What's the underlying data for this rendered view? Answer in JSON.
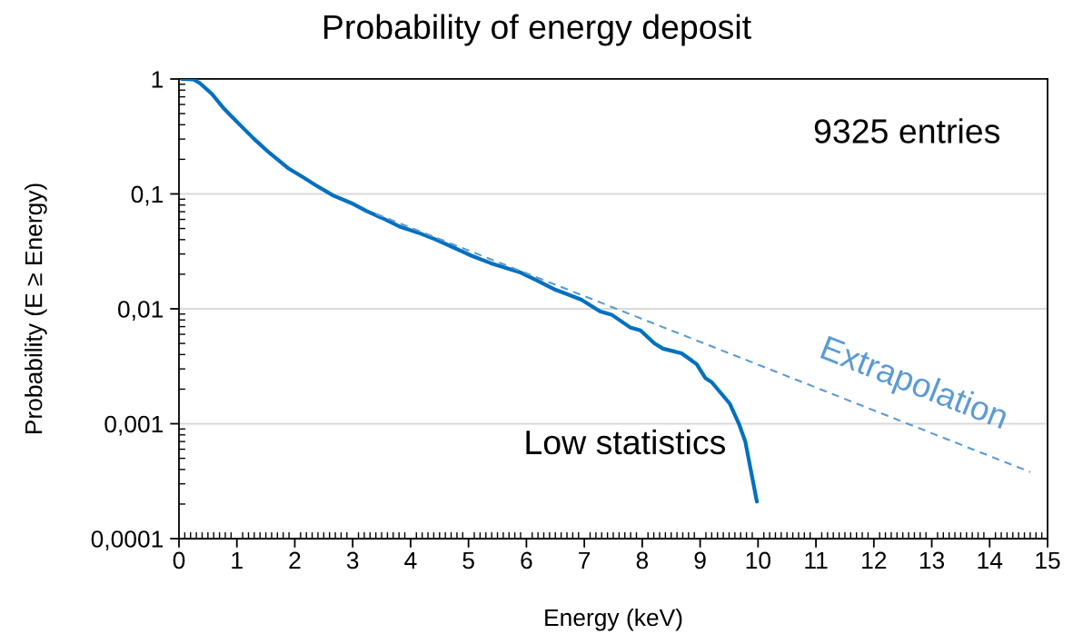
{
  "chart_data": {
    "type": "line",
    "title": "Probability of energy deposit",
    "xlabel": "Energy (keV)",
    "ylabel": "Probability (E ≥ Energy)",
    "xlim": [
      0,
      15
    ],
    "xticks": [
      0,
      1,
      2,
      3,
      4,
      5,
      6,
      7,
      8,
      9,
      10,
      11,
      12,
      13,
      14,
      15
    ],
    "ylim": [
      0.0001,
      1
    ],
    "yticks": [
      {
        "value": 0.0001,
        "label": "0,0001"
      },
      {
        "value": 0.001,
        "label": "0,001"
      },
      {
        "value": 0.01,
        "label": "0,01"
      },
      {
        "value": 0.1,
        "label": "0,1"
      },
      1
    ],
    "log": "y",
    "grid": "y",
    "line_style": "solid",
    "series": [
      {
        "color": "#0070c0",
        "x": [
          0.05,
          0.25,
          0.36,
          0.57,
          0.78,
          1.04,
          1.3,
          1.56,
          1.88,
          2.14,
          2.35,
          2.66,
          2.98,
          3.24,
          3.5,
          3.81,
          4.13,
          4.44,
          4.75,
          5.05,
          5.38,
          5.9,
          6.17,
          6.48,
          6.69,
          6.95,
          7.27,
          7.47,
          7.79,
          7.97,
          8.21,
          8.36,
          8.52,
          8.68,
          8.94,
          9.09,
          9.2,
          9.51,
          9.67,
          9.78,
          9.98
        ],
        "values": [
          1.0,
          0.99,
          0.92,
          0.74,
          0.55,
          0.405,
          0.3,
          0.228,
          0.168,
          0.14,
          0.12,
          0.097,
          0.083,
          0.071,
          0.062,
          0.052,
          0.046,
          0.04,
          0.034,
          0.029,
          0.025,
          0.0207,
          0.0178,
          0.0148,
          0.0135,
          0.012,
          0.0095,
          0.0089,
          0.0069,
          0.0065,
          0.005,
          0.0045,
          0.0043,
          0.0041,
          0.0033,
          0.0025,
          0.0023,
          0.0015,
          0.001,
          0.0007,
          0.00021
        ]
      },
      {
        "name": "Extrapolation",
        "color": "#5b9bd5",
        "line_style": "dashed",
        "x": [
          3.4,
          14.7
        ],
        "values": [
          0.067,
          0.00038
        ]
      }
    ],
    "annotations": [
      "9325 entries",
      {
        "text": "Low statistics",
        "x": 9.8,
        "y": 0.0007
      }
    ]
  }
}
